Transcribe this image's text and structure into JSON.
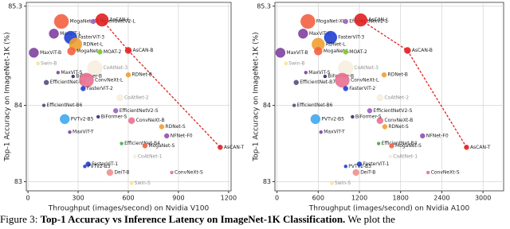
{
  "chart_data": [
    {
      "type": "scatter",
      "xlabel": "Throughput (images/second) on Nvidia V100",
      "ylabel": "Top-1 Accuracy on ImageNet-1K (%)",
      "xlim": [
        -10,
        1215
      ],
      "xticks": [
        0,
        300,
        600,
        900,
        1200
      ],
      "ylim": [
        82.88,
        85.35
      ],
      "yticks": [
        83,
        84,
        85.3
      ],
      "grid": true,
      "labels": [
        "MogaNet-XL",
        "EfficientNetV2-L",
        "AsCAN-L",
        "MaxViT-L",
        "FasterViT-3",
        "RDNet-L",
        "MaxViT-B",
        "MogaNet-L",
        "AsCAN-B",
        "MOAT-2",
        "Swin-B",
        "CoAtNet-3",
        "MaxViT-S",
        "EfficientNet-B7",
        "BiFormer-B",
        "RDNet-B",
        "ConvNeXt-L",
        "FasterViT-2",
        "CoAtNet-2",
        "EfficientNet-B6",
        "EfficientNetV2-S",
        "ConvNeXt-B",
        "RDNet-S",
        "PVTv2-B5",
        "BiFormer-S",
        "NFNet-F0",
        "MaxViT-T",
        "EfficientNet-B4",
        "MogaNet-S",
        "AsCAN-T",
        "CoAtNet-1",
        "FasterViT-1",
        "PVTv2-B3",
        "DeiT-B",
        "ConvNeXt-S",
        "Swin-S"
      ],
      "x": [
        200,
        390,
        443,
        155,
        255,
        285,
        35,
        260,
        600,
        430,
        60,
        400,
        180,
        110,
        270,
        600,
        350,
        330,
        550,
        95,
        525,
        620,
        800,
        220,
        420,
        830,
        250,
        560,
        700,
        1150,
        640,
        360,
        340,
        490,
        860,
        620
      ],
      "values": [
        85.1,
        85.1,
        85.12,
        84.94,
        84.89,
        84.8,
        84.69,
        84.71,
        84.72,
        84.7,
        84.55,
        84.49,
        84.43,
        84.3,
        84.38,
        84.4,
        84.33,
        84.22,
        84.1,
        84.0,
        83.93,
        83.8,
        83.72,
        83.82,
        83.85,
        83.6,
        83.65,
        83.5,
        83.47,
        83.45,
        83.33,
        83.23,
        83.2,
        83.12,
        83.12,
        82.98
      ],
      "sizes": [
        9,
        3,
        8,
        6,
        8,
        8,
        6,
        5,
        4,
        3,
        2,
        9,
        2,
        3,
        2,
        3,
        9,
        3,
        4,
        2,
        3,
        4,
        3,
        6,
        2,
        3,
        2,
        2,
        3,
        3,
        2,
        3,
        2,
        4,
        2,
        2
      ],
      "colors": [
        "#f46040",
        "#9a60c0",
        "#e02020",
        "#8040a0",
        "#2040d0",
        "#f0a030",
        "#8040a0",
        "#f46040",
        "#e02020",
        "#80c830",
        "#f0d050",
        "#f0e0c0",
        "#8040a0",
        "#505080",
        "#303070",
        "#f0a030",
        "#e87090",
        "#2040d0",
        "#f0e0c0",
        "#505080",
        "#9a60c0",
        "#e87090",
        "#f0a030",
        "#40a8f0",
        "#303070",
        "#9050b0",
        "#8040a0",
        "#40b040",
        "#f46040",
        "#e02020",
        "#f0e0c0",
        "#2040d0",
        "#2040d0",
        "#f09090",
        "#e87090",
        "#f0d050"
      ],
      "faded": [
        false,
        false,
        false,
        false,
        false,
        false,
        false,
        false,
        false,
        false,
        true,
        true,
        false,
        false,
        false,
        false,
        false,
        false,
        true,
        false,
        false,
        false,
        false,
        false,
        false,
        false,
        false,
        false,
        false,
        false,
        true,
        false,
        false,
        false,
        false,
        true
      ],
      "frontier": {
        "color": "#e02020",
        "x": [
          443,
          600,
          1150
        ],
        "values": [
          85.12,
          84.72,
          83.45
        ]
      }
    },
    {
      "type": "scatter",
      "xlabel": "Throughput (images/second) on Nvidia A100",
      "ylabel": "Top-1 Accuracy on ImageNet-1K (%)",
      "xlim": [
        -30,
        3300
      ],
      "xticks": [
        0,
        600,
        1200,
        1800,
        2400,
        3000
      ],
      "ylim": [
        82.88,
        85.35
      ],
      "yticks": [
        83,
        84,
        85.3
      ],
      "grid": true,
      "labels": [
        "MogaNet-XL",
        "EfficientNetV2-L",
        "AsCAN-L",
        "MaxViT-L",
        "FasterViT-3",
        "RDNet-L",
        "MaxViT-B",
        "MogaNet-L",
        "AsCAN-B",
        "MOAT-2",
        "Swin-B",
        "CoAtNet-3",
        "MaxViT-S",
        "EfficientNet-B7",
        "BiFormer-B",
        "RDNet-B",
        "ConvNeXt-L",
        "FasterViT-2",
        "CoAtNet-2",
        "EfficientNet-B6",
        "EfficientNetV2-S",
        "ConvNeXt-B",
        "RDNet-S",
        "PVTv2-B5",
        "BiFormer-S",
        "NFNet-F0",
        "MaxViT-T",
        "EfficientNet-B4",
        "MogaNet-S",
        "AsCAN-T",
        "CoAtNet-1",
        "FasterViT-1",
        "PVTv2-B3",
        "DeiT-B",
        "ConvNeXt-S",
        "Swin-S"
      ],
      "x": [
        450,
        1000,
        1220,
        380,
        780,
        600,
        50,
        600,
        1900,
        1000,
        130,
        1000,
        420,
        280,
        700,
        1560,
        950,
        1000,
        1500,
        250,
        1350,
        1500,
        1570,
        560,
        1100,
        2120,
        640,
        1480,
        1670,
        2760,
        1650,
        1200,
        1000,
        1150,
        2200,
        800
      ],
      "values": [
        85.1,
        85.1,
        85.12,
        84.94,
        84.89,
        84.8,
        84.69,
        84.71,
        84.72,
        84.7,
        84.55,
        84.49,
        84.43,
        84.3,
        84.38,
        84.4,
        84.33,
        84.22,
        84.1,
        84.0,
        83.93,
        83.8,
        83.72,
        83.82,
        83.85,
        83.6,
        83.65,
        83.5,
        83.47,
        83.45,
        83.33,
        83.23,
        83.2,
        83.12,
        83.12,
        82.98
      ],
      "sizes": [
        9,
        3,
        8,
        6,
        8,
        8,
        6,
        5,
        4,
        3,
        2,
        9,
        2,
        3,
        2,
        3,
        9,
        3,
        4,
        2,
        3,
        4,
        3,
        6,
        2,
        3,
        2,
        2,
        3,
        3,
        2,
        3,
        2,
        4,
        2,
        2
      ],
      "colors": [
        "#f46040",
        "#9a60c0",
        "#e02020",
        "#8040a0",
        "#2040d0",
        "#f0a030",
        "#8040a0",
        "#f46040",
        "#e02020",
        "#80c830",
        "#f0d050",
        "#f0e0c0",
        "#8040a0",
        "#505080",
        "#303070",
        "#f0a030",
        "#e87090",
        "#2040d0",
        "#f0e0c0",
        "#505080",
        "#9a60c0",
        "#e87090",
        "#f0a030",
        "#40a8f0",
        "#303070",
        "#9050b0",
        "#8040a0",
        "#40b040",
        "#f46040",
        "#e02020",
        "#f0e0c0",
        "#2040d0",
        "#2040d0",
        "#f09090",
        "#e87090",
        "#f0d050"
      ],
      "faded": [
        false,
        false,
        false,
        false,
        false,
        false,
        false,
        false,
        false,
        false,
        true,
        true,
        false,
        false,
        false,
        false,
        false,
        false,
        true,
        false,
        false,
        false,
        false,
        false,
        false,
        false,
        false,
        false,
        false,
        false,
        true,
        false,
        false,
        false,
        false,
        true
      ],
      "frontier": {
        "color": "#e02020",
        "x": [
          1220,
          1900,
          2760
        ],
        "values": [
          85.12,
          84.72,
          83.45
        ]
      }
    }
  ],
  "caption": {
    "prefix": "Figure 3:",
    "bold": "Top-1 Accuracy vs Inference Latency on ImageNet-1K Classification.",
    "rest": "We plot the"
  }
}
